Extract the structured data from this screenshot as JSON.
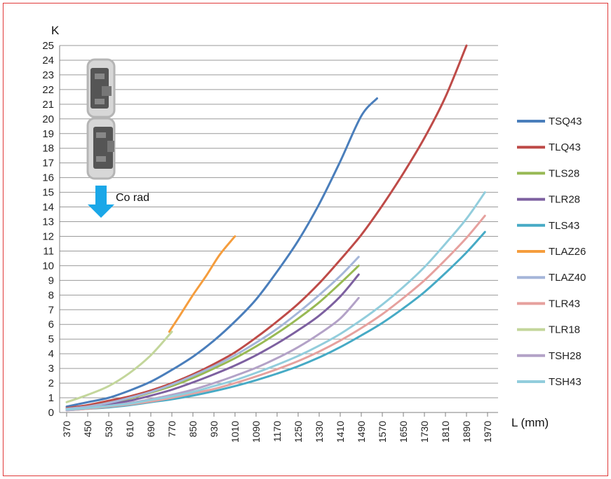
{
  "chart_data": {
    "type": "line",
    "ylabel": "K",
    "xlabel": "L (mm)",
    "ylim": [
      0,
      25
    ],
    "yticks": [
      "0",
      "1",
      "2",
      "3",
      "4",
      "5",
      "6",
      "7",
      "8",
      "9",
      "10",
      "11",
      "12",
      "13",
      "14",
      "15",
      "16",
      "17",
      "18",
      "19",
      "20",
      "21",
      "22",
      "23",
      "24",
      "25"
    ],
    "xlim": [
      370,
      1970
    ],
    "xticks": [
      "370",
      "450",
      "530",
      "610",
      "690",
      "770",
      "850",
      "930",
      "1010",
      "1090",
      "1170",
      "1250",
      "1330",
      "1410",
      "1490",
      "1570",
      "1650",
      "1730",
      "1810",
      "1890",
      "1970"
    ],
    "grid": "horizontal",
    "legend_position": "right",
    "annotation": "Co rad",
    "series": [
      {
        "name": "TSQ43",
        "color": "#4a7ebb",
        "x": [
          370,
          450,
          530,
          610,
          690,
          770,
          850,
          930,
          1010,
          1090,
          1170,
          1250,
          1330,
          1410,
          1490,
          1550
        ],
        "y": [
          0.4,
          0.7,
          1.0,
          1.5,
          2.1,
          2.9,
          3.8,
          4.9,
          6.2,
          7.7,
          9.6,
          11.7,
          14.2,
          17.1,
          20.2,
          21.4
        ]
      },
      {
        "name": "TLQ43",
        "color": "#be4b48",
        "x": [
          370,
          450,
          530,
          610,
          690,
          770,
          850,
          930,
          1010,
          1090,
          1170,
          1250,
          1330,
          1410,
          1490,
          1570,
          1650,
          1730,
          1810,
          1890
        ],
        "y": [
          0.3,
          0.5,
          0.8,
          1.1,
          1.5,
          2.0,
          2.6,
          3.3,
          4.1,
          5.1,
          6.2,
          7.4,
          8.8,
          10.4,
          12.1,
          14.1,
          16.3,
          18.7,
          21.5,
          25.0
        ]
      },
      {
        "name": "TLS28",
        "color": "#98b954",
        "x": [
          370,
          450,
          530,
          610,
          690,
          770,
          850,
          930,
          1010,
          1090,
          1170,
          1250,
          1330,
          1410,
          1480
        ],
        "y": [
          0.25,
          0.4,
          0.65,
          0.95,
          1.35,
          1.8,
          2.35,
          3.0,
          3.7,
          4.5,
          5.4,
          6.4,
          7.5,
          8.8,
          10.0
        ]
      },
      {
        "name": "TLR28",
        "color": "#7d60a0",
        "x": [
          370,
          450,
          530,
          610,
          690,
          770,
          850,
          930,
          1010,
          1090,
          1170,
          1250,
          1330,
          1410,
          1480
        ],
        "y": [
          0.2,
          0.35,
          0.55,
          0.8,
          1.15,
          1.55,
          2.05,
          2.6,
          3.2,
          3.9,
          4.7,
          5.6,
          6.6,
          7.9,
          9.4
        ]
      },
      {
        "name": "TLS43",
        "color": "#46aac5",
        "x": [
          370,
          450,
          530,
          610,
          690,
          770,
          850,
          930,
          1010,
          1090,
          1170,
          1250,
          1330,
          1410,
          1490,
          1570,
          1650,
          1730,
          1810,
          1890,
          1960
        ],
        "y": [
          0.15,
          0.25,
          0.35,
          0.5,
          0.7,
          0.9,
          1.15,
          1.45,
          1.8,
          2.2,
          2.65,
          3.15,
          3.75,
          4.45,
          5.25,
          6.1,
          7.1,
          8.2,
          9.5,
          10.9,
          12.3
        ]
      },
      {
        "name": "TLAZ26",
        "color": "#f59d3d",
        "x": [
          760,
          800,
          850,
          900,
          950,
          1000,
          1010
        ],
        "y": [
          5.5,
          6.6,
          8.0,
          9.3,
          10.7,
          11.8,
          12.0
        ]
      },
      {
        "name": "TLAZ40",
        "color": "#a5b6d9",
        "x": [
          370,
          450,
          530,
          610,
          690,
          770,
          850,
          930,
          1010,
          1090,
          1170,
          1250,
          1330,
          1410,
          1480
        ],
        "y": [
          0.25,
          0.4,
          0.65,
          1.0,
          1.4,
          1.9,
          2.5,
          3.15,
          3.9,
          4.75,
          5.7,
          6.8,
          8.0,
          9.3,
          10.6
        ]
      },
      {
        "name": "TLR43",
        "color": "#e6a19e",
        "x": [
          370,
          450,
          530,
          610,
          690,
          770,
          850,
          930,
          1010,
          1090,
          1170,
          1250,
          1330,
          1410,
          1490,
          1570,
          1650,
          1730,
          1810,
          1890,
          1960
        ],
        "y": [
          0.15,
          0.25,
          0.4,
          0.55,
          0.75,
          1.0,
          1.3,
          1.6,
          2.0,
          2.45,
          2.95,
          3.5,
          4.15,
          4.9,
          5.75,
          6.7,
          7.8,
          9.0,
          10.4,
          11.9,
          13.4
        ]
      },
      {
        "name": "TLR18",
        "color": "#c3d69b",
        "x": [
          370,
          450,
          530,
          610,
          690,
          770
        ],
        "y": [
          0.7,
          1.2,
          1.8,
          2.7,
          3.9,
          5.5
        ]
      },
      {
        "name": "TSH28",
        "color": "#b3a2c7",
        "x": [
          370,
          450,
          530,
          610,
          690,
          770,
          850,
          930,
          1010,
          1090,
          1170,
          1250,
          1330,
          1410,
          1480
        ],
        "y": [
          0.15,
          0.3,
          0.45,
          0.65,
          0.9,
          1.2,
          1.55,
          2.0,
          2.5,
          3.05,
          3.7,
          4.45,
          5.35,
          6.4,
          7.8
        ]
      },
      {
        "name": "TSH43",
        "color": "#92cddc",
        "x": [
          370,
          450,
          530,
          610,
          690,
          770,
          850,
          930,
          1010,
          1090,
          1170,
          1250,
          1330,
          1410,
          1490,
          1570,
          1650,
          1730,
          1810,
          1890,
          1960
        ],
        "y": [
          0.2,
          0.3,
          0.45,
          0.6,
          0.85,
          1.1,
          1.4,
          1.8,
          2.2,
          2.7,
          3.25,
          3.85,
          4.55,
          5.35,
          6.3,
          7.35,
          8.55,
          9.9,
          11.5,
          13.2,
          15.0
        ]
      }
    ]
  }
}
